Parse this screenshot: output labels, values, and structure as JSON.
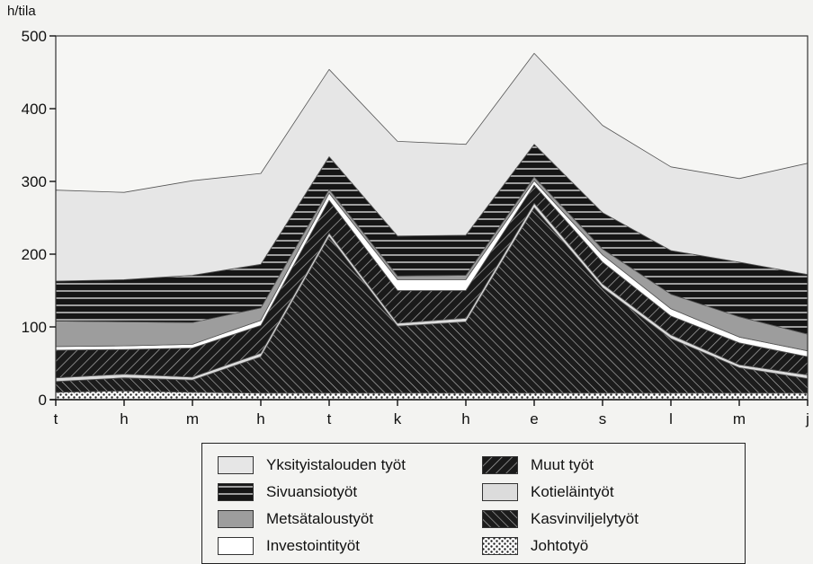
{
  "chart_data": {
    "type": "area",
    "stacked": true,
    "ylabel": "h/tila",
    "xlabel": "",
    "ylim": [
      0,
      500
    ],
    "yticks": [
      0,
      100,
      200,
      300,
      400,
      500
    ],
    "categories": [
      "t",
      "h",
      "m",
      "h",
      "t",
      "k",
      "h",
      "e",
      "s",
      "l",
      "m",
      "j"
    ],
    "legend_position": "bottom",
    "series": [
      {
        "name": "Johtotyö",
        "pattern": "dots",
        "values": [
          10,
          12,
          10,
          9,
          9,
          9,
          9,
          9,
          9,
          9,
          9,
          9
        ]
      },
      {
        "name": "Kasvinviljelytyöt",
        "pattern": "hatch-forward",
        "values": [
          15,
          18,
          17,
          50,
          215,
          92,
          98,
          255,
          145,
          75,
          35,
          20
        ]
      },
      {
        "name": "Kotieläintyöt",
        "pattern": "light-gray",
        "values": [
          5,
          5,
          4,
          5,
          5,
          4,
          5,
          6,
          5,
          5,
          4,
          5
        ]
      },
      {
        "name": "Muut työt",
        "pattern": "hatch-back",
        "values": [
          38,
          34,
          40,
          38,
          45,
          45,
          38,
          25,
          30,
          26,
          30,
          25
        ]
      },
      {
        "name": "Investointityöt",
        "pattern": "white",
        "values": [
          5,
          5,
          5,
          7,
          10,
          15,
          15,
          6,
          10,
          10,
          8,
          8
        ]
      },
      {
        "name": "Metsätaloustyöt",
        "pattern": "gray",
        "values": [
          35,
          33,
          30,
          17,
          5,
          5,
          6,
          5,
          8,
          20,
          28,
          23
        ]
      },
      {
        "name": "Sivuansiotyöt",
        "pattern": "stripes-horizontal",
        "values": [
          55,
          58,
          65,
          60,
          45,
          55,
          55,
          45,
          50,
          60,
          75,
          82
        ]
      },
      {
        "name": "Yksityistalouden työt",
        "pattern": "very-light-gray",
        "values": [
          125,
          120,
          130,
          125,
          120,
          130,
          125,
          125,
          120,
          115,
          115,
          153
        ]
      }
    ]
  },
  "legend": {
    "left": [
      {
        "label": "Yksityistalouden työt",
        "pattern": "very-light-gray"
      },
      {
        "label": "Sivuansiotyöt",
        "pattern": "stripes-horizontal"
      },
      {
        "label": "Metsätaloustyöt",
        "pattern": "gray"
      },
      {
        "label": "Investointityöt",
        "pattern": "white"
      }
    ],
    "right": [
      {
        "label": "Muut työt",
        "pattern": "hatch-back"
      },
      {
        "label": "Kotieläintyöt",
        "pattern": "light-gray"
      },
      {
        "label": "Kasvinviljelytyöt",
        "pattern": "hatch-forward"
      },
      {
        "label": "Johtotyö",
        "pattern": "dots"
      }
    ]
  }
}
